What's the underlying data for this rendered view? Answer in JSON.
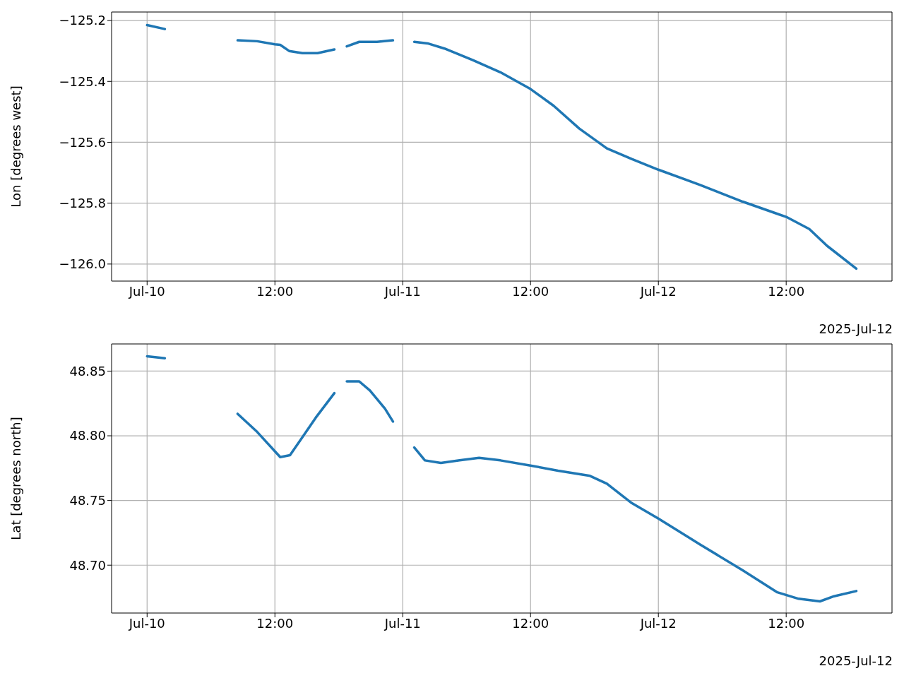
{
  "chart_data": [
    {
      "type": "line",
      "ylabel": "Lon [degrees west]",
      "annotations": [
        "2025-Jul-12"
      ],
      "grid": true,
      "line_style": "solid",
      "xlim": [
        "2025-07-09T20:40",
        "2025-07-12T21:56"
      ],
      "xticks": [
        {
          "value": "2025-07-10T00:00",
          "label": "Jul-10"
        },
        {
          "value": "2025-07-10T12:00",
          "label": "12:00"
        },
        {
          "value": "2025-07-11T00:00",
          "label": "Jul-11"
        },
        {
          "value": "2025-07-11T12:00",
          "label": "12:00"
        },
        {
          "value": "2025-07-12T00:00",
          "label": "Jul-12"
        },
        {
          "value": "2025-07-12T12:00",
          "label": "12:00"
        }
      ],
      "ylim": [
        -126.056,
        -125.172
      ],
      "yticks": [
        {
          "value": -126.0,
          "label": "−126.0"
        },
        {
          "value": -125.8,
          "label": "−125.8"
        },
        {
          "value": -125.6,
          "label": "−125.6"
        },
        {
          "value": -125.4,
          "label": "−125.4"
        },
        {
          "value": -125.2,
          "label": "−125.2"
        }
      ],
      "series": [
        {
          "color": "#1f77b4",
          "x": [
            "2025-07-10T00:00",
            "2025-07-10T01:40",
            "2025-07-10T05:00",
            "2025-07-10T08:30",
            "2025-07-10T10:20",
            "2025-07-10T12:00",
            "2025-07-10T12:30",
            "2025-07-10T13:20",
            "2025-07-10T14:35",
            "2025-07-10T16:00",
            "2025-07-10T17:35",
            "2025-07-10T18:10",
            "2025-07-10T18:45",
            "2025-07-10T19:55",
            "2025-07-10T21:35",
            "2025-07-10T23:05",
            "2025-07-11T00:05",
            "2025-07-11T01:05",
            "2025-07-11T02:20",
            "2025-07-11T03:55",
            "2025-07-11T06:35",
            "2025-07-11T09:10",
            "2025-07-11T12:00",
            "2025-07-11T14:10",
            "2025-07-11T16:35",
            "2025-07-11T19:10",
            "2025-07-11T21:30",
            "2025-07-12T00:00",
            "2025-07-12T03:55",
            "2025-07-12T07:55",
            "2025-07-12T11:10",
            "2025-07-12T12:00",
            "2025-07-12T14:10",
            "2025-07-12T15:50",
            "2025-07-12T18:35"
          ],
          "values": [
            -125.215,
            -125.228,
            null,
            -125.265,
            -125.268,
            -125.278,
            -125.28,
            -125.3,
            -125.307,
            -125.307,
            -125.295,
            null,
            -125.285,
            -125.27,
            -125.27,
            -125.265,
            null,
            -125.27,
            -125.275,
            -125.292,
            -125.33,
            -125.37,
            -125.425,
            -125.48,
            -125.555,
            -125.62,
            -125.655,
            -125.69,
            -125.74,
            -125.795,
            -125.835,
            -125.845,
            -125.885,
            -125.94,
            -126.015
          ]
        }
      ]
    },
    {
      "type": "line",
      "ylabel": "Lat [degrees north]",
      "annotations": [
        "2025-Jul-12"
      ],
      "grid": true,
      "line_style": "solid",
      "xlim": [
        "2025-07-09T20:40",
        "2025-07-12T21:56"
      ],
      "xticks": [
        {
          "value": "2025-07-10T00:00",
          "label": "Jul-10"
        },
        {
          "value": "2025-07-10T12:00",
          "label": "12:00"
        },
        {
          "value": "2025-07-11T00:00",
          "label": "Jul-11"
        },
        {
          "value": "2025-07-11T12:00",
          "label": "12:00"
        },
        {
          "value": "2025-07-12T00:00",
          "label": "Jul-12"
        },
        {
          "value": "2025-07-12T12:00",
          "label": "12:00"
        }
      ],
      "ylim": [
        48.663,
        48.871
      ],
      "yticks": [
        {
          "value": 48.7,
          "label": "48.70"
        },
        {
          "value": 48.75,
          "label": "48.75"
        },
        {
          "value": 48.8,
          "label": "48.80"
        },
        {
          "value": 48.85,
          "label": "48.85"
        }
      ],
      "series": [
        {
          "color": "#1f77b4",
          "x": [
            "2025-07-10T00:00",
            "2025-07-10T01:40",
            "2025-07-10T05:00",
            "2025-07-10T08:30",
            "2025-07-10T10:20",
            "2025-07-10T12:00",
            "2025-07-10T12:30",
            "2025-07-10T13:25",
            "2025-07-10T14:35",
            "2025-07-10T15:50",
            "2025-07-10T17:35",
            "2025-07-10T18:10",
            "2025-07-10T18:45",
            "2025-07-10T19:55",
            "2025-07-10T20:55",
            "2025-07-10T22:20",
            "2025-07-10T23:05",
            "2025-07-11T00:05",
            "2025-07-11T01:05",
            "2025-07-11T02:05",
            "2025-07-11T03:35",
            "2025-07-11T05:20",
            "2025-07-11T07:10",
            "2025-07-11T09:10",
            "2025-07-11T12:00",
            "2025-07-11T14:35",
            "2025-07-11T17:35",
            "2025-07-11T19:10",
            "2025-07-11T21:30",
            "2025-07-12T00:00",
            "2025-07-12T03:55",
            "2025-07-12T07:55",
            "2025-07-12T11:10",
            "2025-07-12T13:10",
            "2025-07-12T15:10",
            "2025-07-12T16:30",
            "2025-07-12T18:35"
          ],
          "values": [
            48.8615,
            48.86,
            null,
            48.817,
            48.803,
            48.788,
            48.7835,
            48.785,
            48.799,
            48.814,
            48.833,
            null,
            48.842,
            48.842,
            48.835,
            48.821,
            48.811,
            null,
            48.791,
            48.781,
            48.779,
            48.781,
            48.783,
            48.781,
            48.777,
            48.773,
            48.769,
            48.763,
            48.748,
            48.736,
            48.716,
            48.696,
            48.679,
            48.674,
            48.672,
            48.676,
            48.68
          ]
        }
      ]
    }
  ]
}
